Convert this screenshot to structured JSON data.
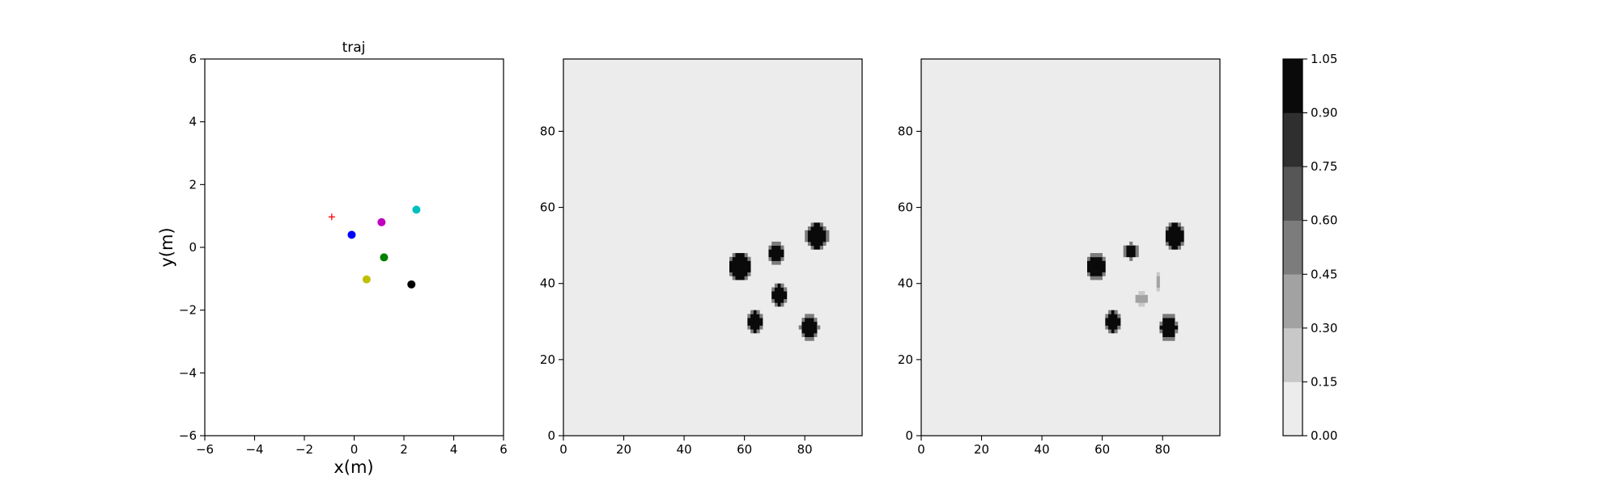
{
  "chart_data": [
    {
      "type": "scatter",
      "title": "traj",
      "xlabel": "x(m)",
      "ylabel": "y(m)",
      "xlim": [
        -6,
        6
      ],
      "ylim": [
        -6,
        6
      ],
      "xticks": [
        "−6",
        "−4",
        "−2",
        "0",
        "2",
        "4",
        "6"
      ],
      "yticks": [
        "−6",
        "−4",
        "−2",
        "0",
        "2",
        "4",
        "6"
      ],
      "grid": false,
      "points": [
        {
          "x": -0.9,
          "y": 0.97,
          "color": "#ff0000",
          "marker": "plus"
        },
        {
          "x": -0.1,
          "y": 0.4,
          "color": "#0000ff",
          "marker": "circle"
        },
        {
          "x": 1.1,
          "y": 0.8,
          "color": "#bf00bf",
          "marker": "circle"
        },
        {
          "x": 2.5,
          "y": 1.2,
          "color": "#00bfbf",
          "marker": "circle"
        },
        {
          "x": 1.2,
          "y": -0.32,
          "color": "#008000",
          "marker": "circle"
        },
        {
          "x": 0.5,
          "y": -1.02,
          "color": "#bfbf00",
          "marker": "circle"
        },
        {
          "x": 2.3,
          "y": -1.18,
          "color": "#000000",
          "marker": "circle"
        }
      ]
    },
    {
      "type": "heatmap",
      "title": "",
      "xlim": [
        0,
        99
      ],
      "ylim": [
        0,
        99
      ],
      "xticks": [
        "0",
        "20",
        "40",
        "60",
        "80"
      ],
      "yticks": [
        "0",
        "20",
        "40",
        "60",
        "80"
      ],
      "background_value": 0.05,
      "blobs": [
        {
          "x": 58,
          "y": 44,
          "rx": 3.6,
          "ry": 3.6,
          "value": 1.0
        },
        {
          "x": 70,
          "y": 47.5,
          "rx": 2.6,
          "ry": 2.7,
          "value": 1.0
        },
        {
          "x": 83.5,
          "y": 52,
          "rx": 3.4,
          "ry": 3.6,
          "value": 1.0
        },
        {
          "x": 71,
          "y": 36.5,
          "rx": 2.7,
          "ry": 2.9,
          "value": 1.0
        },
        {
          "x": 63,
          "y": 29.5,
          "rx": 2.7,
          "ry": 2.9,
          "value": 1.0
        },
        {
          "x": 81,
          "y": 28,
          "rx": 2.9,
          "ry": 3.3,
          "value": 1.0
        }
      ]
    },
    {
      "type": "heatmap",
      "title": "",
      "xlim": [
        0,
        99
      ],
      "ylim": [
        0,
        99
      ],
      "xticks": [
        "0",
        "20",
        "40",
        "60",
        "80"
      ],
      "yticks": [
        "0",
        "20",
        "40",
        "60",
        "80"
      ],
      "background_value": 0.05,
      "blobs": [
        {
          "x": 57.5,
          "y": 44,
          "rx": 3.0,
          "ry": 3.4,
          "value": 1.0
        },
        {
          "x": 69,
          "y": 48,
          "rx": 2.2,
          "ry": 2.0,
          "value": 1.0
        },
        {
          "x": 83.5,
          "y": 52,
          "rx": 3.2,
          "ry": 3.6,
          "value": 1.0
        },
        {
          "x": 63,
          "y": 29.5,
          "rx": 2.6,
          "ry": 3.0,
          "value": 1.0
        },
        {
          "x": 81.5,
          "y": 28,
          "rx": 2.8,
          "ry": 3.3,
          "value": 1.0
        },
        {
          "x": 72.5,
          "y": 35.5,
          "rx": 1.8,
          "ry": 1.6,
          "value": 0.35
        },
        {
          "x": 78,
          "y": 40,
          "rx": 0.9,
          "ry": 2.0,
          "value": 0.3
        }
      ]
    },
    {
      "type": "colorbar",
      "levels": [
        "0.00",
        "0.15",
        "0.30",
        "0.45",
        "0.60",
        "0.75",
        "0.90",
        "1.05"
      ],
      "colors": [
        "#ececec",
        "#c8c8c8",
        "#a2a2a2",
        "#7c7c7c",
        "#565656",
        "#2f2f2f",
        "#0a0a0a"
      ]
    }
  ]
}
